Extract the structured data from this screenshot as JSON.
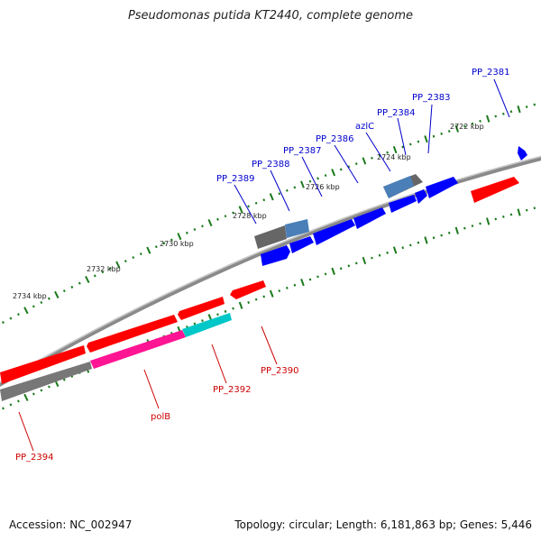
{
  "title": "Pseudomonas putida KT2440, complete genome",
  "footer": {
    "accession": "Accession: NC_002947",
    "summary": "Topology: circular; Length: 6,181,863 bp; Genes: 5,446"
  },
  "colors": {
    "forward": "#0000ff",
    "forward_shaded": "#4a7fb8",
    "reverse": "#ff0000",
    "gray": "#777777",
    "magenta": "#ff1493",
    "cyan": "#00c8c8",
    "tick": "#1a7a1a",
    "forward_label": "#0000cc",
    "reverse_label": "#cc0000"
  },
  "scale_labels": [
    "2722 kbp",
    "2724 kbp",
    "2726 kbp",
    "2728 kbp",
    "2730 kbp",
    "2732 kbp",
    "2734 kbp"
  ],
  "forward_gene_labels": [
    "PP_2381",
    "PP_2383",
    "PP_2384",
    "azlC",
    "PP_2386",
    "PP_2387",
    "PP_2388",
    "PP_2389"
  ],
  "reverse_gene_labels": [
    "PP_2390",
    "PP_2392",
    "polB",
    "PP_2394"
  ]
}
